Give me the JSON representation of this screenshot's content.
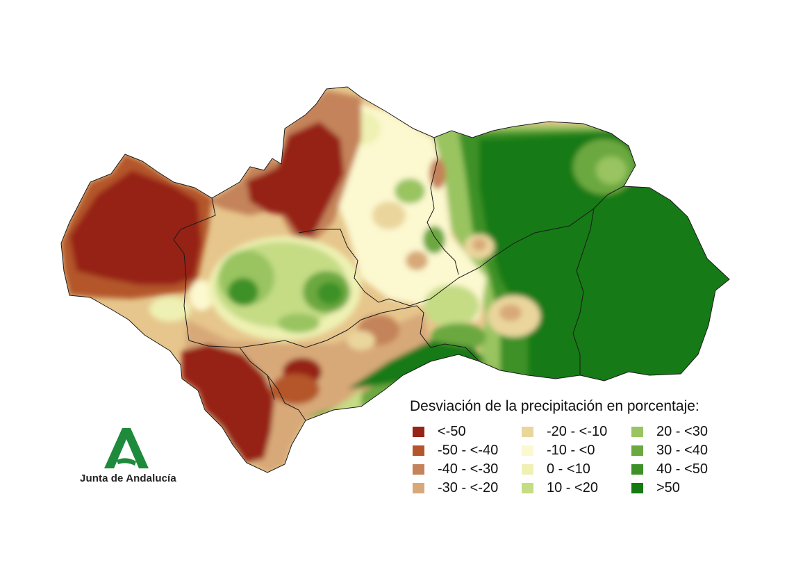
{
  "legend": {
    "title": "Desviación de la precipitación en porcentaje:",
    "items": [
      {
        "label": "<-50",
        "color": "#962417"
      },
      {
        "label": "-50 - <-40",
        "color": "#b4562c"
      },
      {
        "label": "-40 - <-30",
        "color": "#c4835a"
      },
      {
        "label": "-30 - <-20",
        "color": "#d8a978"
      },
      {
        "label": "-20 - <-10",
        "color": "#ead59d"
      },
      {
        "label": "-10 - <0",
        "color": "#fcf8cf"
      },
      {
        "label": "0 - <10",
        "color": "#eef1b3"
      },
      {
        "label": "10 - <20",
        "color": "#c5dc85"
      },
      {
        "label": "20 - <30",
        "color": "#99c461"
      },
      {
        "label": "30 - <40",
        "color": "#6ca840"
      },
      {
        "label": "40 - <50",
        "color": "#3e9128"
      },
      {
        "label": ">50",
        "color": "#157a12"
      }
    ]
  },
  "logo": {
    "text": "Junta de Andalucía",
    "color": "#1e8a3c"
  }
}
